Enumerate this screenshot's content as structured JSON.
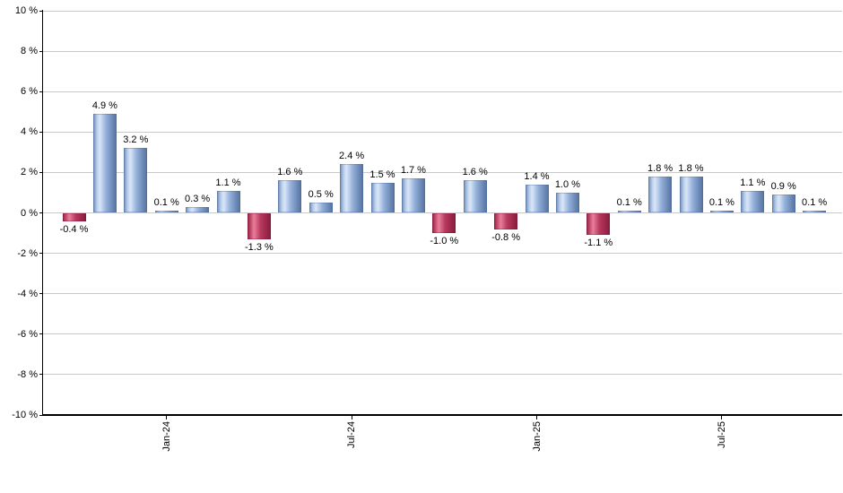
{
  "chart_data": {
    "type": "bar",
    "title": "",
    "xlabel": "",
    "ylabel": "",
    "ylim": [
      -10,
      10
    ],
    "y_tick_step": 2,
    "y_tick_suffix": " %",
    "data_label_suffix": " %",
    "grid": true,
    "legend": "none",
    "values": [
      -0.4,
      4.9,
      3.2,
      0.1,
      0.3,
      1.1,
      -1.3,
      1.6,
      0.5,
      2.4,
      1.5,
      1.7,
      -1.0,
      1.6,
      -0.8,
      1.4,
      1.0,
      -1.1,
      0.1,
      1.8,
      1.8,
      0.1,
      1.1,
      0.9,
      0.1
    ],
    "x_ticks": [
      {
        "label": "Jan-24",
        "bar_index": 3
      },
      {
        "label": "Jul-24",
        "bar_index": 9
      },
      {
        "label": "Jan-25",
        "bar_index": 15
      },
      {
        "label": "Jul-25",
        "bar_index": 21
      }
    ],
    "colors": {
      "positive_gradient": [
        "#6d87b2",
        "#b3cbea",
        "#dbe6f7",
        "#93b0da",
        "#54719f"
      ],
      "positive_border": "#44639a",
      "negative_gradient": [
        "#8f2243",
        "#c84e70",
        "#e87f9b",
        "#b83a5e",
        "#871a3b"
      ],
      "negative_border": "#7a1030",
      "grid_color": "#c9c9c9",
      "axis_color": "#000000",
      "label_color": "#000000",
      "background": "#ffffff"
    }
  }
}
